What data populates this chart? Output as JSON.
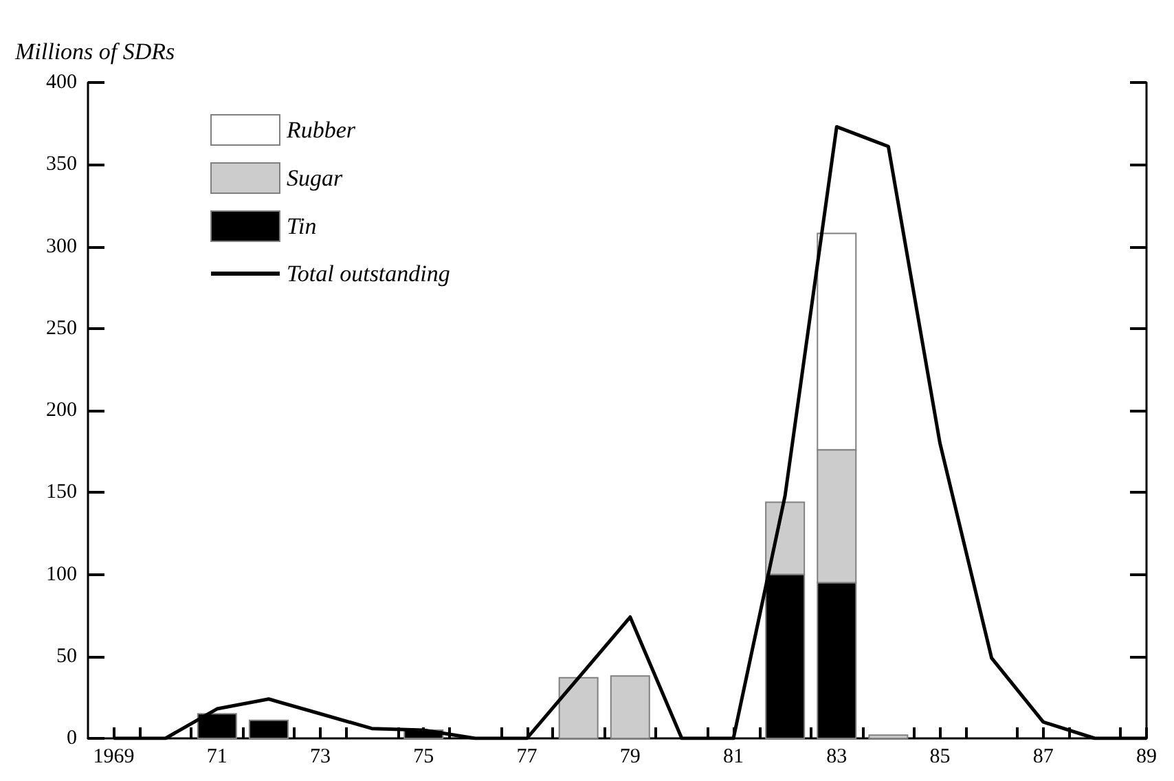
{
  "chart_data": {
    "type": "bar",
    "ylabel": "Millions of SDRs",
    "x": [
      1969,
      1970,
      1971,
      1972,
      1973,
      1974,
      1975,
      1976,
      1977,
      1978,
      1979,
      1980,
      1981,
      1982,
      1983,
      1984,
      1985,
      1986,
      1987,
      1988,
      1989
    ],
    "stacked": true,
    "series": [
      {
        "name": "Tin",
        "color": "#000000",
        "values": [
          null,
          null,
          15,
          11,
          null,
          null,
          5,
          null,
          null,
          null,
          null,
          null,
          null,
          100,
          95,
          null,
          null,
          null,
          null,
          null,
          null
        ]
      },
      {
        "name": "Sugar",
        "color": "#cccccc",
        "values": [
          null,
          null,
          null,
          null,
          null,
          null,
          null,
          null,
          null,
          37,
          38,
          null,
          null,
          44,
          81,
          2,
          null,
          null,
          null,
          null,
          null
        ]
      },
      {
        "name": "Rubber",
        "color": "#ffffff",
        "values": [
          null,
          null,
          null,
          null,
          null,
          null,
          null,
          null,
          null,
          null,
          null,
          null,
          null,
          null,
          132,
          null,
          null,
          null,
          null,
          null,
          null
        ]
      },
      {
        "name": "Total outstanding",
        "type": "line",
        "color": "#000000",
        "values": [
          0,
          0,
          18,
          24,
          15,
          6,
          5,
          0,
          0,
          37,
          74,
          0,
          0,
          148,
          373,
          361,
          180,
          49,
          10,
          0,
          0
        ]
      }
    ],
    "xlim": [
      1968.5,
      1989
    ],
    "xticks": [
      {
        "value": 1969,
        "label": "1969"
      },
      {
        "value": 1971,
        "label": "71"
      },
      {
        "value": 1973,
        "label": "73"
      },
      {
        "value": 1975,
        "label": "75"
      },
      {
        "value": 1977,
        "label": "77"
      },
      {
        "value": 1979,
        "label": "79"
      },
      {
        "value": 1981,
        "label": "81"
      },
      {
        "value": 1983,
        "label": "83"
      },
      {
        "value": 1985,
        "label": "85"
      },
      {
        "value": 1987,
        "label": "87"
      },
      {
        "value": 1989,
        "label": "89"
      },
      {
        "value": 1969.5,
        "label": null
      },
      {
        "value": 1970.5,
        "label": null
      },
      {
        "value": 1971.5,
        "label": null
      },
      {
        "value": 1972.5,
        "label": null
      },
      {
        "value": 1973.5,
        "label": null
      },
      {
        "value": 1974.5,
        "label": null
      },
      {
        "value": 1975.5,
        "label": null
      },
      {
        "value": 1976.5,
        "label": null
      },
      {
        "value": 1977.5,
        "label": null
      },
      {
        "value": 1978.5,
        "label": null
      },
      {
        "value": 1979.5,
        "label": null
      },
      {
        "value": 1980.5,
        "label": null
      },
      {
        "value": 1981.5,
        "label": null
      },
      {
        "value": 1982.5,
        "label": null
      },
      {
        "value": 1983.5,
        "label": null
      },
      {
        "value": 1984.5,
        "label": null
      },
      {
        "value": 1985.5,
        "label": null
      },
      {
        "value": 1986.5,
        "label": null
      },
      {
        "value": 1987.5,
        "label": null
      },
      {
        "value": 1988.5,
        "label": null
      }
    ],
    "ylim": [
      0,
      400
    ],
    "yticks": [
      0,
      50,
      100,
      150,
      200,
      250,
      300,
      350,
      400
    ],
    "grid": false,
    "legend": "top left"
  }
}
